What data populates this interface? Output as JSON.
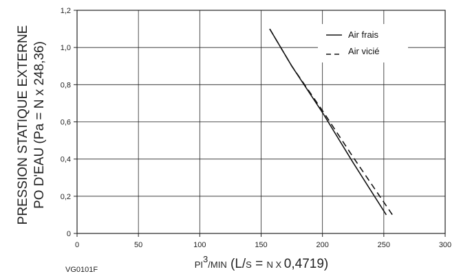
{
  "chart_data": {
    "type": "line",
    "ylabel_line1": "PRESSION STATIQUE EXTERNE",
    "ylabel_line2": "PO D'EAU (Pa = N x 248,36)",
    "xlabel": {
      "unit_prefix": "PI",
      "unit_sup": "3",
      "unit_suffix": "/MIN",
      "paren_open": " (L/",
      "s_char": "S",
      "eq": " = ",
      "n_char": "N",
      "x_char": " X ",
      "factor": "0,4719)"
    },
    "xlim": [
      0,
      300
    ],
    "ylim": [
      0,
      1.2
    ],
    "x_ticks": [
      "0",
      "50",
      "100",
      "150",
      "200",
      "250",
      "300"
    ],
    "y_ticks": [
      "0",
      "0,2",
      "0,4",
      "0,6",
      "0,8",
      "1,0",
      "1,2"
    ],
    "grid": true,
    "legend_position": "top-right",
    "series": [
      {
        "name": "Air frais",
        "style": "solid",
        "x": [
          157,
          175,
          200,
          225,
          252
        ],
        "y": [
          1.1,
          0.9,
          0.65,
          0.38,
          0.1
        ]
      },
      {
        "name": "Air vicié",
        "style": "dashed",
        "x": [
          157,
          175,
          200,
          225,
          257
        ],
        "y": [
          1.1,
          0.9,
          0.66,
          0.41,
          0.1
        ]
      }
    ]
  },
  "figure_code": "VG0101F"
}
